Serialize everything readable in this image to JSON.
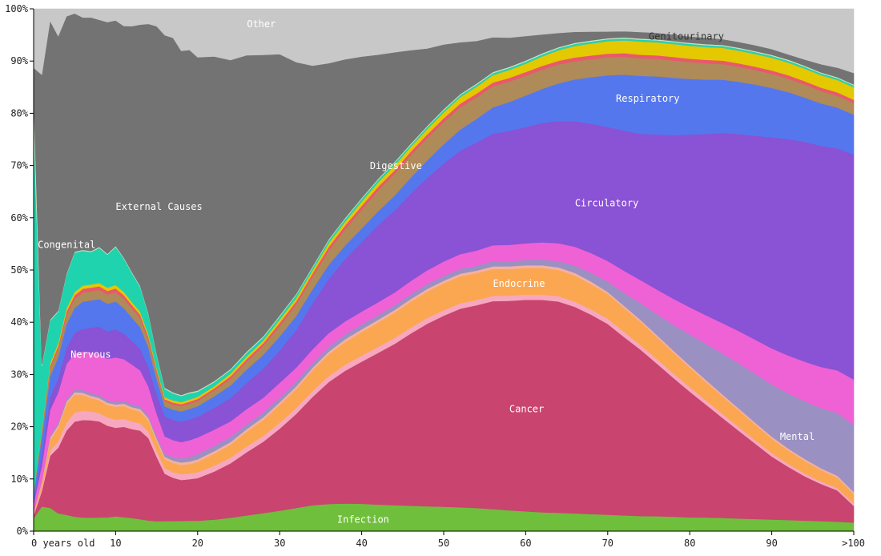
{
  "chart_data": {
    "type": "area",
    "stacked": "percent",
    "x_tick_labels": [
      "0 years old",
      "10",
      "20",
      "30",
      "40",
      "50",
      "60",
      "70",
      "80",
      "90",
      ">100"
    ],
    "x": [
      0,
      1,
      2,
      3,
      4,
      5,
      6,
      7,
      8,
      9,
      10,
      11,
      12,
      13,
      14,
      15,
      16,
      17,
      18,
      19,
      20,
      22,
      24,
      26,
      28,
      30,
      32,
      34,
      36,
      38,
      40,
      42,
      44,
      46,
      48,
      50,
      52,
      54,
      56,
      58,
      60,
      62,
      64,
      66,
      68,
      70,
      72,
      74,
      76,
      78,
      80,
      82,
      84,
      86,
      88,
      90,
      92,
      94,
      96,
      98,
      100
    ],
    "y_tick_labels": [
      "0%",
      "10%",
      "20%",
      "30%",
      "40%",
      "50%",
      "60%",
      "70%",
      "80%",
      "90%",
      "100%"
    ],
    "ylim": [
      0,
      100
    ],
    "series": [
      {
        "name": "Infection",
        "color": "#6fbf3c",
        "values": [
          2.5,
          4.8,
          4.5,
          3.8,
          3.5,
          3.2,
          3.0,
          3.0,
          3.0,
          3.0,
          3.2,
          3.0,
          2.8,
          2.5,
          2.2,
          2.0,
          2.0,
          2.0,
          2.0,
          2.0,
          2.0,
          2.2,
          2.6,
          3.0,
          3.4,
          3.8,
          4.3,
          4.8,
          5.0,
          5.1,
          5.1,
          5.0,
          4.9,
          4.8,
          4.7,
          4.6,
          4.5,
          4.4,
          4.2,
          4.0,
          3.8,
          3.6,
          3.5,
          3.4,
          3.3,
          3.2,
          3.1,
          3.0,
          3.0,
          2.9,
          2.8,
          2.8,
          2.7,
          2.6,
          2.5,
          2.4,
          2.3,
          2.2,
          2.1,
          2.0,
          1.8
        ]
      },
      {
        "name": "Cancer",
        "color": "#c9446e",
        "values": [
          0.5,
          3,
          10,
          14,
          18,
          21,
          21.5,
          21.5,
          21,
          20,
          19,
          19.5,
          19,
          18.5,
          17,
          13,
          9.5,
          8.5,
          8,
          8,
          8.2,
          9.2,
          10.5,
          12,
          13.5,
          15.2,
          17.5,
          20,
          22.5,
          24.5,
          26.5,
          28.5,
          30.5,
          32.5,
          34.5,
          36,
          37.5,
          38.5,
          39.5,
          40,
          40.5,
          40.6,
          40.3,
          39.5,
          38.5,
          37,
          35,
          33,
          30.5,
          28,
          25.5,
          23,
          20.5,
          18,
          15.5,
          13,
          11,
          9.2,
          7.8,
          6.6,
          3.5
        ]
      },
      {
        "name": "",
        "color": "#f7a8c0",
        "values": [
          0.2,
          0.5,
          1,
          1.3,
          1.7,
          2,
          2,
          1.9,
          1.8,
          1.8,
          1.7,
          1.7,
          1.6,
          1.5,
          1.3,
          1.2,
          1.1,
          1.1,
          1.1,
          1.1,
          1.1,
          1.1,
          1.1,
          1.1,
          1.1,
          1.1,
          1.1,
          1.1,
          1.1,
          1.1,
          1.1,
          1.1,
          1.1,
          1.1,
          1.1,
          1.0,
          1.0,
          1.0,
          1.0,
          1.0,
          1.0,
          1.0,
          1.0,
          1.0,
          1.0,
          1.0,
          1.0,
          0.9,
          0.9,
          0.9,
          0.9,
          0.8,
          0.8,
          0.8,
          0.7,
          0.7,
          0.6,
          0.6,
          0.5,
          0.5,
          0.5
        ]
      },
      {
        "name": "Endocrine",
        "color": "#fba752",
        "values": [
          0.3,
          1,
          2,
          3,
          4,
          4,
          3.5,
          3,
          2.8,
          2.7,
          2.8,
          2.8,
          2.6,
          2.5,
          2.3,
          2,
          1.8,
          1.8,
          1.8,
          1.8,
          2,
          2.3,
          2.5,
          2.8,
          3,
          3.3,
          3.5,
          3.8,
          4,
          4.2,
          4.4,
          4.6,
          4.8,
          4.9,
          5,
          5.1,
          5.1,
          5.1,
          5.1,
          5.1,
          5.1,
          5.1,
          5.0,
          5.0,
          4.9,
          4.8,
          4.7,
          4.6,
          4.4,
          4.2,
          4.0,
          3.8,
          3.6,
          3.4,
          3.2,
          3.0,
          2.8,
          2.6,
          2.4,
          2.2,
          2.0
        ]
      },
      {
        "name": "",
        "color": "#f4b0a0",
        "values": [
          0.1,
          0.3,
          0.5,
          0.5,
          0.5,
          0.5,
          0.5,
          0.5,
          0.5,
          0.5,
          0.5,
          0.5,
          0.5,
          0.5,
          0.5,
          0.5,
          0.5,
          0.5,
          0.5,
          0.5,
          0.5,
          0.5,
          0.5,
          0.5,
          0.5,
          0.5,
          0.5,
          0.5,
          0.5,
          0.5,
          0.5,
          0.5,
          0.5,
          0.5,
          0.5,
          0.5,
          0.5,
          0.5,
          0.5,
          0.5,
          0.5,
          0.5,
          0.5,
          0.5,
          0.5,
          0.4,
          0.4,
          0.4,
          0.4,
          0.4,
          0.4,
          0.4,
          0.4,
          0.4,
          0.4,
          0.4,
          0.4,
          0.4,
          0.4,
          0.4,
          0.4
        ]
      },
      {
        "name": "Mental",
        "color": "#9b90c2",
        "values": [
          0.1,
          0.2,
          0.3,
          0.5,
          0.5,
          0.6,
          0.6,
          0.6,
          0.6,
          0.6,
          0.6,
          0.6,
          0.6,
          0.6,
          0.5,
          0.5,
          0.6,
          0.7,
          0.8,
          0.9,
          1.0,
          1.0,
          1.0,
          0.9,
          0.9,
          0.9,
          0.9,
          0.9,
          0.9,
          0.9,
          0.9,
          0.9,
          0.9,
          0.9,
          0.9,
          0.9,
          0.9,
          0.9,
          1.0,
          1.0,
          1.0,
          1.1,
          1.2,
          1.4,
          1.7,
          2.0,
          2.6,
          3.3,
          4.2,
          5.2,
          6.3,
          7.4,
          8.4,
          9.3,
          10.1,
          10.8,
          11.4,
          12.0,
          12.6,
          13.2,
          14.0
        ]
      },
      {
        "name": "Nervous",
        "color": "#ef62d5",
        "values": [
          1.5,
          3,
          5,
          6.5,
          7.5,
          8,
          8.5,
          9,
          9,
          9,
          9.5,
          9,
          8.5,
          7.5,
          6,
          4.5,
          3.5,
          3.3,
          3.2,
          3.2,
          3.2,
          3.1,
          3.0,
          2.9,
          2.8,
          2.7,
          2.6,
          2.5,
          2.5,
          2.4,
          2.4,
          2.4,
          2.4,
          2.5,
          2.6,
          2.7,
          2.8,
          2.9,
          3.0,
          3.1,
          3.2,
          3.3,
          3.4,
          3.6,
          3.8,
          4.0,
          4.3,
          4.6,
          4.9,
          5.2,
          5.5,
          5.8,
          6.2,
          6.6,
          7.0,
          7.4,
          7.8,
          8.2,
          8.6,
          9.0,
          9.5
        ]
      },
      {
        "name": "Circulatory",
        "color": "#8a52d4",
        "values": [
          0.5,
          2,
          2.5,
          3,
          3.5,
          4.5,
          5,
          5.5,
          6,
          6,
          6,
          5.5,
          5,
          4.5,
          4,
          4,
          4,
          4,
          4,
          4,
          4,
          4.2,
          4.5,
          5,
          5.5,
          6,
          7,
          8.5,
          10,
          11.5,
          13,
          14.5,
          15.5,
          16.5,
          17.5,
          18.5,
          19.5,
          20.5,
          21.2,
          21.8,
          22.3,
          22.8,
          23.3,
          24,
          25,
          26,
          27.5,
          29,
          31,
          33,
          35,
          37,
          39,
          40.5,
          42,
          43.5,
          44.7,
          45.6,
          46.3,
          46.8,
          47
        ]
      },
      {
        "name": "Respiratory",
        "color": "#5577ee",
        "values": [
          1.5,
          3.5,
          4,
          4.5,
          5,
          5.5,
          6,
          6,
          6,
          6,
          6,
          5.5,
          5,
          4.5,
          4,
          3,
          2,
          2,
          2,
          2,
          2,
          2.2,
          2.4,
          2.5,
          2.6,
          2.6,
          2.6,
          2.6,
          2.6,
          2.5,
          2.5,
          2.6,
          2.8,
          3,
          3.3,
          3.6,
          4,
          4.5,
          5,
          5.5,
          6,
          6.5,
          7.2,
          8,
          9,
          10,
          11,
          11.5,
          11.6,
          11.5,
          11.3,
          11.1,
          10.9,
          10.7,
          10.5,
          10.2,
          9.7,
          9.2,
          8.9,
          8.6,
          8.3
        ]
      },
      {
        "name": "",
        "color": "#ae8b58",
        "values": [
          0.2,
          1,
          1.5,
          1.8,
          2,
          2,
          2,
          2,
          2,
          2,
          2,
          2,
          2,
          1.9,
          1.6,
          1.3,
          1,
          1,
          1,
          1,
          1,
          1.1,
          1.3,
          1.5,
          1.7,
          1.9,
          2.1,
          2.3,
          2.6,
          3,
          3.5,
          3.9,
          4.1,
          4.2,
          4.2,
          4.2,
          4.2,
          4.1,
          4.0,
          3.9,
          3.8,
          3.7,
          3.6,
          3.5,
          3.5,
          3.5,
          3.5,
          3.5,
          3.5,
          3.5,
          3.4,
          3.3,
          3.2,
          3.1,
          3.0,
          2.9,
          2.8,
          2.7,
          2.6,
          2.5,
          2.4
        ]
      },
      {
        "name": "",
        "color": "#e8596b",
        "values": [
          0.1,
          0.3,
          0.5,
          0.6,
          0.7,
          0.8,
          0.8,
          0.8,
          0.8,
          0.8,
          0.8,
          0.8,
          0.7,
          0.7,
          0.6,
          0.5,
          0.4,
          0.4,
          0.4,
          0.4,
          0.4,
          0.4,
          0.5,
          0.5,
          0.5,
          0.6,
          0.6,
          0.6,
          0.7,
          0.7,
          0.7,
          0.7,
          0.7,
          0.7,
          0.7,
          0.7,
          0.7,
          0.7,
          0.7,
          0.7,
          0.7,
          0.7,
          0.7,
          0.7,
          0.7,
          0.7,
          0.7,
          0.7,
          0.7,
          0.7,
          0.7,
          0.7,
          0.7,
          0.7,
          0.7,
          0.7,
          0.7,
          0.7,
          0.7,
          0.7,
          0.7
        ]
      },
      {
        "name": "Genitourinary",
        "color": "#e4c800",
        "values": [
          0.1,
          0.3,
          0.5,
          0.6,
          0.7,
          0.7,
          0.7,
          0.7,
          0.7,
          0.7,
          0.7,
          0.7,
          0.6,
          0.6,
          0.5,
          0.4,
          0.4,
          0.4,
          0.4,
          0.4,
          0.4,
          0.4,
          0.5,
          0.5,
          0.5,
          0.6,
          0.6,
          0.6,
          0.7,
          0.7,
          0.8,
          0.8,
          0.9,
          0.9,
          1.0,
          1.1,
          1.2,
          1.3,
          1.4,
          1.5,
          1.6,
          1.8,
          2.0,
          2.2,
          2.3,
          2.4,
          2.5,
          2.6,
          2.6,
          2.6,
          2.6,
          2.6,
          2.6,
          2.6,
          2.6,
          2.6,
          2.6,
          2.6,
          2.6,
          2.6,
          2.6
        ]
      },
      {
        "name": "",
        "color": "#3ec9a7",
        "values": [
          0.1,
          0.2,
          0.2,
          0.2,
          0.2,
          0.2,
          0.2,
          0.2,
          0.2,
          0.2,
          0.2,
          0.2,
          0.2,
          0.2,
          0.2,
          0.2,
          0.2,
          0.2,
          0.2,
          0.2,
          0.2,
          0.2,
          0.2,
          0.2,
          0.2,
          0.2,
          0.2,
          0.2,
          0.2,
          0.2,
          0.2,
          0.2,
          0.2,
          0.2,
          0.2,
          0.2,
          0.2,
          0.2,
          0.2,
          0.2,
          0.2,
          0.2,
          0.2,
          0.2,
          0.2,
          0.2,
          0.2,
          0.2,
          0.2,
          0.2,
          0.2,
          0.2,
          0.2,
          0.2,
          0.2,
          0.2,
          0.2,
          0.2,
          0.2,
          0.2,
          0.2
        ]
      },
      {
        "name": "Congenital",
        "color": "#1fd3ae",
        "values": [
          70,
          12,
          8,
          6.5,
          7,
          8.5,
          7.5,
          7,
          7.5,
          7,
          8,
          7,
          6,
          5,
          4,
          2.5,
          1.5,
          1.2,
          1.0,
          1.0,
          0.8,
          0.6,
          0.5,
          0.5,
          0.4,
          0.4,
          0.4,
          0.3,
          0.3,
          0.3,
          0.3,
          0.3,
          0.3,
          0.2,
          0.2,
          0.2,
          0.2,
          0.2,
          0.2,
          0.2,
          0.2,
          0.2,
          0.2,
          0.2,
          0.2,
          0.2,
          0.2,
          0.2,
          0.2,
          0.2,
          0.2,
          0.2,
          0.2,
          0.2,
          0.2,
          0.2,
          0.2,
          0.2,
          0.2,
          0.2,
          0.2
        ]
      },
      {
        "name": "",
        "color": "#c8e6c0",
        "values": [
          6,
          0.3,
          0.2,
          0.2,
          0.2,
          0.2,
          0.2,
          0.2,
          0.2,
          0.2,
          0.2,
          0.2,
          0.2,
          0.2,
          0.2,
          0.2,
          0.2,
          0.2,
          0.2,
          0.2,
          0.2,
          0.2,
          0.2,
          0.2,
          0.2,
          0.2,
          0.2,
          0.2,
          0.2,
          0.2,
          0.2,
          0.2,
          0.2,
          0.2,
          0.2,
          0.2,
          0.2,
          0.2,
          0.2,
          0.2,
          0.2,
          0.2,
          0.2,
          0.2,
          0.2,
          0.2,
          0.2,
          0.2,
          0.2,
          0.2,
          0.2,
          0.2,
          0.2,
          0.2,
          0.2,
          0.2,
          0.2,
          0.2,
          0.2,
          0.2,
          0.2
        ]
      },
      {
        "name": "External Causes",
        "color": "#737373",
        "values": [
          5.1,
          56.3,
          57.5,
          58.5,
          55,
          52.6,
          51.2,
          51.6,
          49.6,
          50.5,
          48.4,
          49.9,
          52.6,
          54.6,
          59.7,
          66,
          70.6,
          69.7,
          67.2,
          65.8,
          64,
          62.1,
          59.6,
          56.2,
          53.1,
          48.4,
          43.1,
          37.1,
          32.4,
          29.2,
          26.3,
          23.3,
          20.7,
          17.6,
          14.6,
          12.2,
          9.8,
          8.1,
          6.6,
          5.6,
          4.7,
          3.6,
          2.7,
          2.1,
          1.7,
          1.3,
          1.2,
          1.3,
          1.3,
          1.3,
          1.3,
          1.3,
          1.2,
          1.2,
          1.2,
          1.2,
          1.1,
          1.3,
          1.7,
          2.0,
          2.4
        ]
      },
      {
        "name": "Other",
        "color": "#c8c8c8",
        "values": [
          11.3,
          12.8,
          2.3,
          5.8,
          1.6,
          1,
          1.9,
          1.9,
          2.4,
          2.9,
          2.5,
          3.7,
          3.7,
          3.3,
          3.1,
          3.5,
          5.3,
          5.7,
          8.2,
          7.9,
          9.3,
          9.1,
          9.9,
          8.8,
          8.7,
          8.4,
          9.9,
          10.5,
          10,
          9.3,
          8.9,
          8.6,
          8.2,
          7.8,
          7.5,
          6.7,
          6.3,
          6.1,
          5.4,
          5.5,
          5.2,
          4.9,
          4.6,
          4.4,
          4.4,
          4.4,
          4.4,
          4.6,
          4.8,
          5.2,
          5.6,
          5.9,
          6.2,
          6.8,
          7.5,
          8.3,
          9.4,
          10.5,
          11.6,
          12.4,
          13.4
        ]
      }
    ],
    "annotations": [
      {
        "text": "Other",
        "x": 26,
        "y": 96.5,
        "dark": false
      },
      {
        "text": "External Causes",
        "x": 10,
        "y": 61.5,
        "dark": false
      },
      {
        "text": "Congenital",
        "x": 0.5,
        "y": 54.2,
        "dark": false
      },
      {
        "text": "Nervous",
        "x": 4.5,
        "y": 33.2,
        "dark": false
      },
      {
        "text": "Infection",
        "x": 37,
        "y": 1.6,
        "dark": false
      },
      {
        "text": "Cancer",
        "x": 58,
        "y": 22.8,
        "dark": false
      },
      {
        "text": "Endocrine",
        "x": 56,
        "y": 46.8,
        "dark": false
      },
      {
        "text": "Circulatory",
        "x": 66,
        "y": 62.2,
        "dark": false
      },
      {
        "text": "Digestive",
        "x": 41,
        "y": 69.3,
        "dark": false
      },
      {
        "text": "Respiratory",
        "x": 71,
        "y": 82.2,
        "dark": false
      },
      {
        "text": "Genitourinary",
        "x": 75,
        "y": 94.1,
        "dark": true
      },
      {
        "text": "Mental",
        "x": 91,
        "y": 17.5,
        "dark": false
      }
    ]
  }
}
